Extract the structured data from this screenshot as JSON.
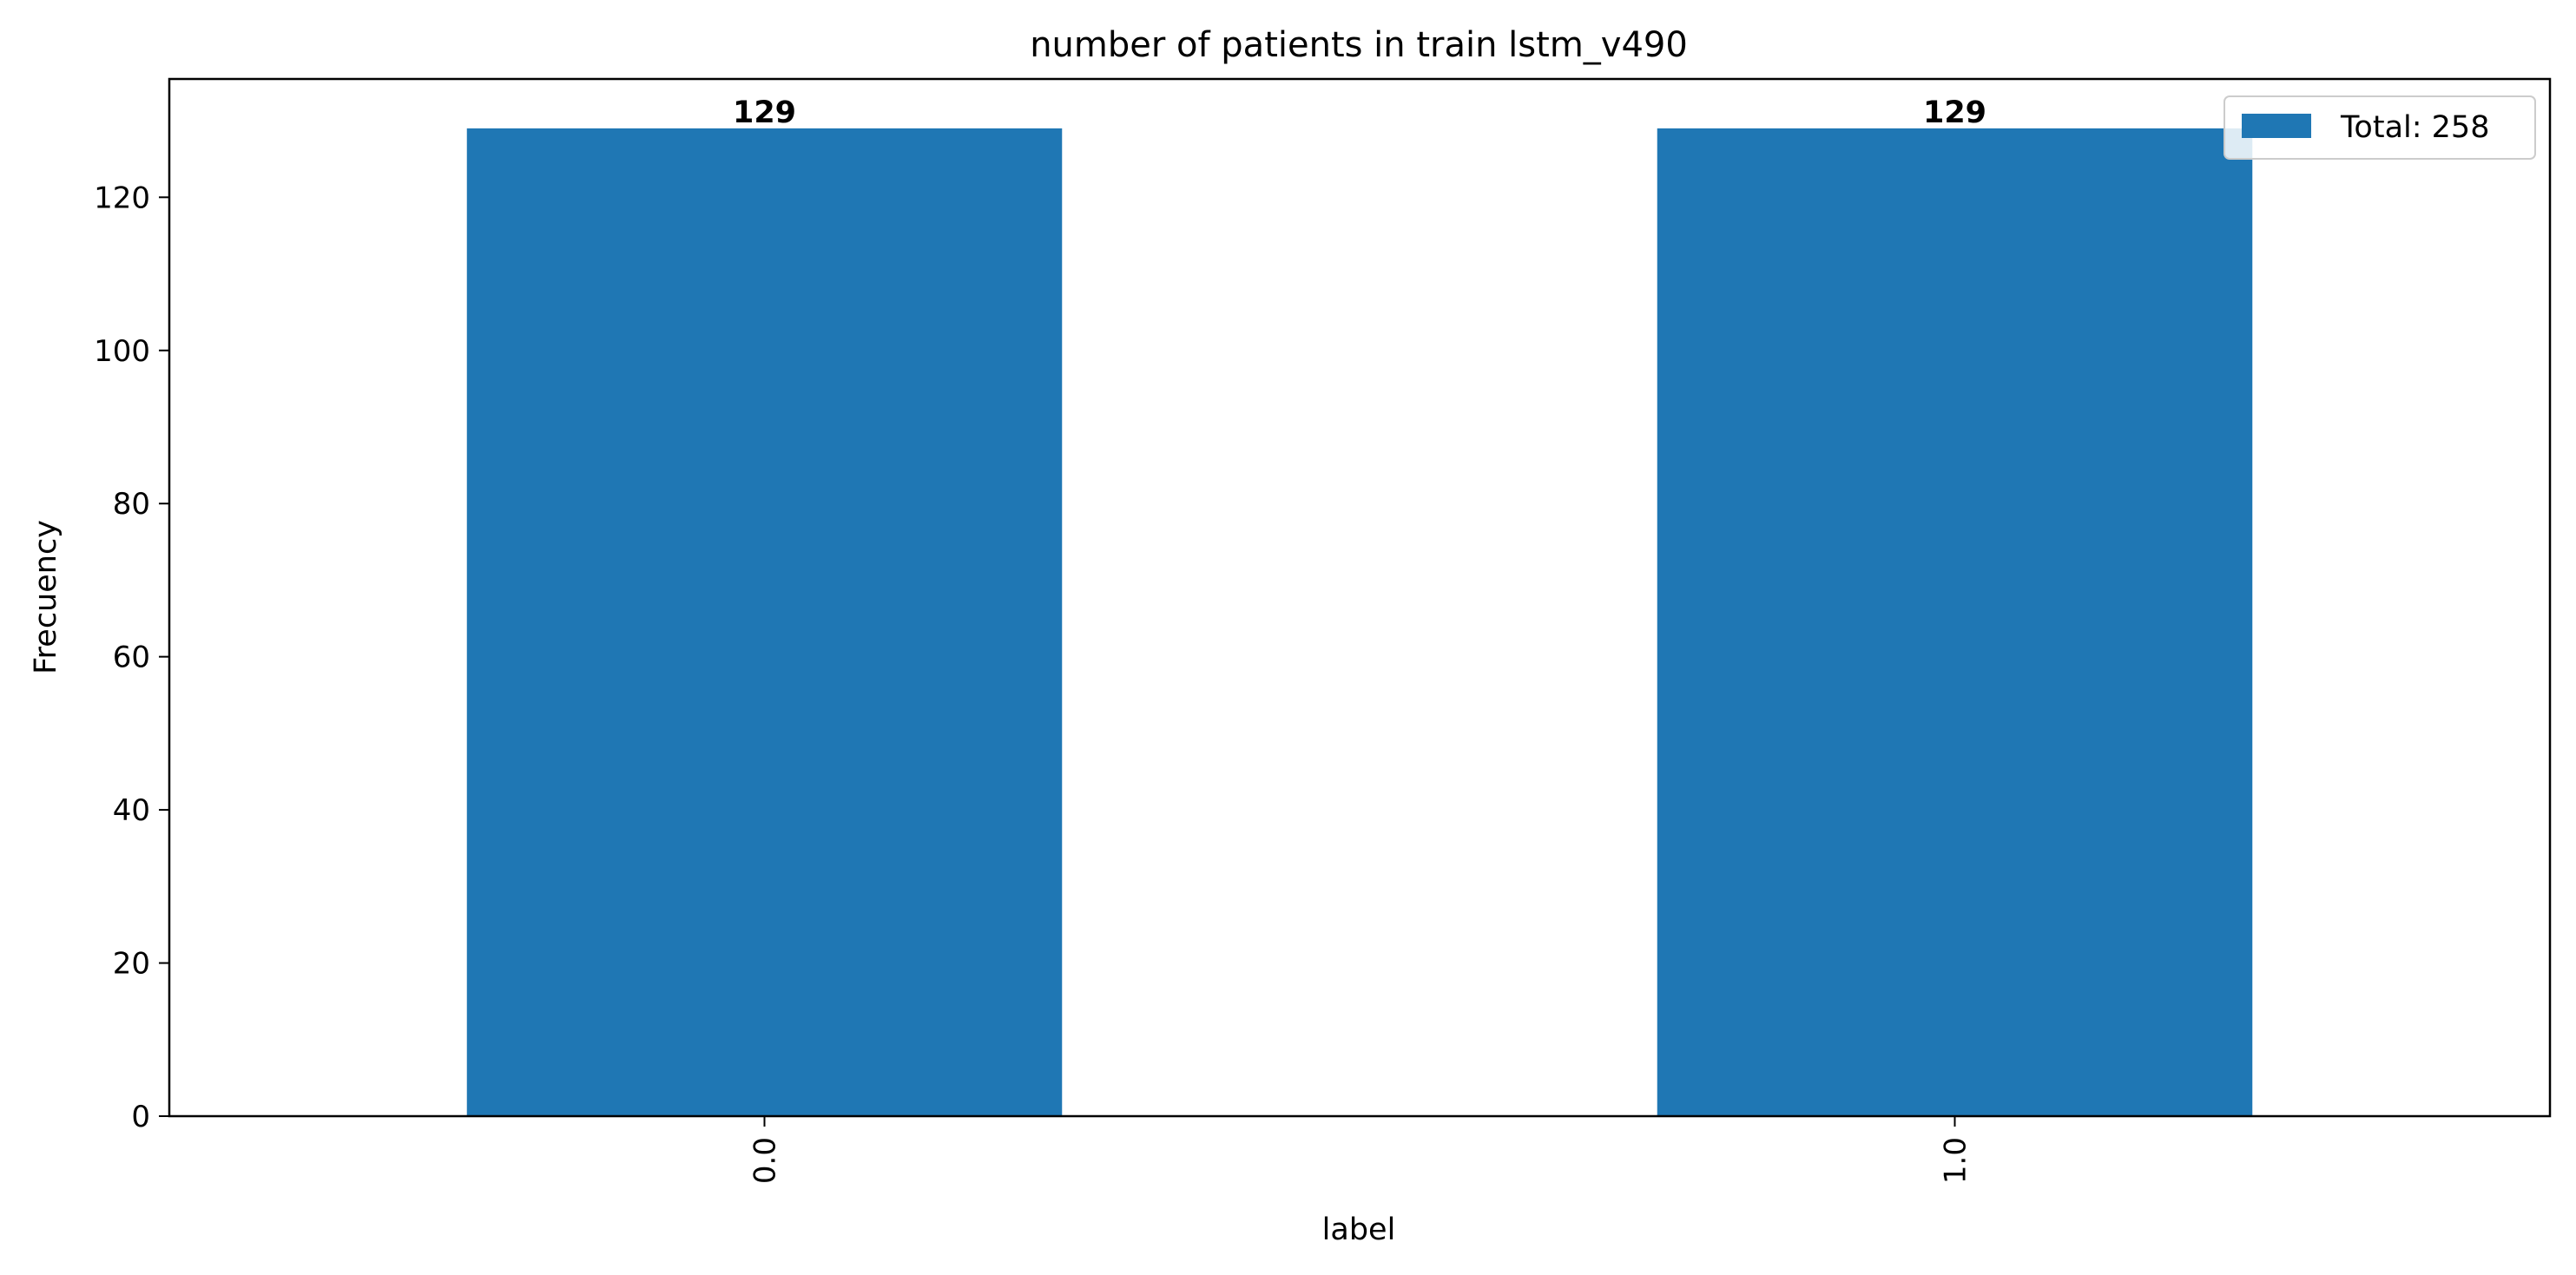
{
  "chart_data": {
    "type": "bar",
    "title": "number of patients in train lstm_v490",
    "xlabel": "label",
    "ylabel": "Frecuency",
    "categories": [
      "0.0",
      "1.0"
    ],
    "values": [
      129,
      129
    ],
    "data_labels": [
      "129",
      "129"
    ],
    "ylim": [
      0,
      135.45
    ],
    "yticks": [
      0,
      20,
      40,
      60,
      80,
      100,
      120
    ],
    "ytick_labels": [
      "0",
      "20",
      "40",
      "60",
      "80",
      "100",
      "120"
    ],
    "grid": false,
    "legend": {
      "placement": "top-right",
      "entries": [
        "Total: 258"
      ]
    },
    "colors": {
      "bar": "#1f77b4",
      "axes": "#000000",
      "legend_border": "#cccccc"
    }
  }
}
